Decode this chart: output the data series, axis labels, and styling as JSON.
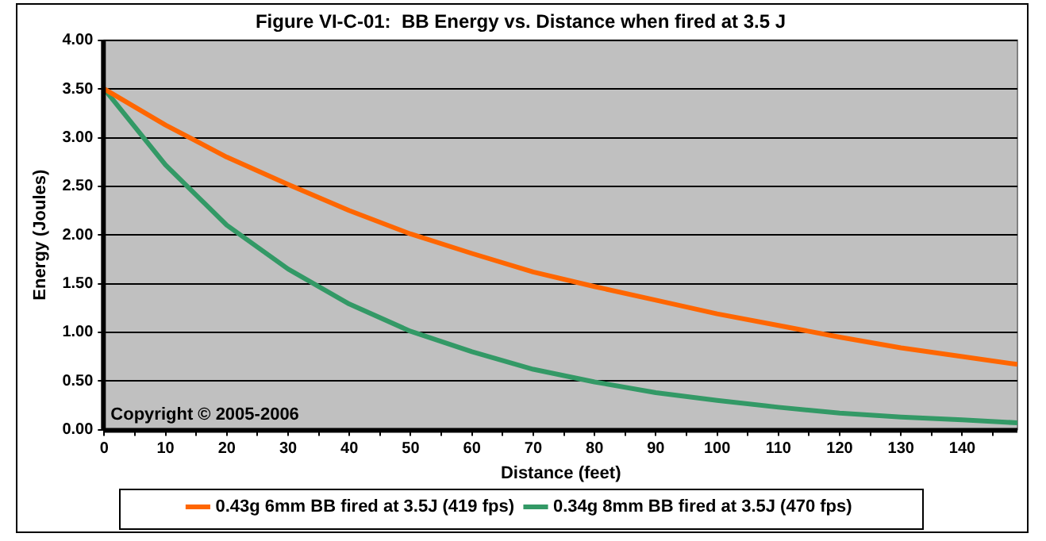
{
  "chart_data": {
    "type": "line",
    "title": "Figure VI-C-01:  BB Energy vs. Distance when fired at 3.5 J",
    "xlabel": "Distance (feet)",
    "ylabel": "Energy (Joules)",
    "x": [
      0,
      10,
      20,
      30,
      40,
      50,
      60,
      70,
      80,
      90,
      100,
      110,
      120,
      130,
      140,
      149
    ],
    "series": [
      {
        "name": "0.43g 6mm BB fired at 3.5J (419 fps)",
        "color": "#ff6600",
        "values": [
          3.5,
          3.13,
          2.8,
          2.52,
          2.25,
          2.01,
          1.81,
          1.62,
          1.47,
          1.33,
          1.19,
          1.07,
          0.95,
          0.84,
          0.75,
          0.67
        ]
      },
      {
        "name": "0.34g 8mm BB fired at 3.5J (470 fps)",
        "color": "#339966",
        "values": [
          3.5,
          2.72,
          2.1,
          1.65,
          1.29,
          1.01,
          0.8,
          0.62,
          0.49,
          0.38,
          0.3,
          0.23,
          0.17,
          0.13,
          0.1,
          0.07
        ]
      }
    ],
    "xlim": [
      0,
      149
    ],
    "xticks": [
      0,
      {
        "value": 5,
        "label": null
      },
      10,
      {
        "value": 15,
        "label": null
      },
      20,
      {
        "value": 25,
        "label": null
      },
      30,
      {
        "value": 35,
        "label": null
      },
      40,
      {
        "value": 45,
        "label": null
      },
      50,
      {
        "value": 55,
        "label": null
      },
      60,
      {
        "value": 65,
        "label": null
      },
      70,
      {
        "value": 75,
        "label": null
      },
      80,
      {
        "value": 85,
        "label": null
      },
      90,
      {
        "value": 95,
        "label": null
      },
      100,
      {
        "value": 105,
        "label": null
      },
      110,
      {
        "value": 115,
        "label": null
      },
      120,
      {
        "value": 125,
        "label": null
      },
      130,
      {
        "value": 135,
        "label": null
      },
      140,
      {
        "value": 145,
        "label": null
      }
    ],
    "ylim": [
      0,
      4
    ],
    "yticks": [
      {
        "value": 0,
        "label": "0.00"
      },
      {
        "value": 0.5,
        "label": "0.50"
      },
      {
        "value": 1,
        "label": "1.00"
      },
      {
        "value": 1.5,
        "label": "1.50"
      },
      {
        "value": 2,
        "label": "2.00"
      },
      {
        "value": 2.5,
        "label": "2.50"
      },
      {
        "value": 3,
        "label": "3.00"
      },
      {
        "value": 3.5,
        "label": "3.50"
      },
      {
        "value": 4,
        "label": "4.00"
      }
    ],
    "grid": "y",
    "legend": "bottom",
    "marker": "none",
    "line_style": "solid",
    "annotations": [
      "Copyright © 2005-2006"
    ]
  }
}
